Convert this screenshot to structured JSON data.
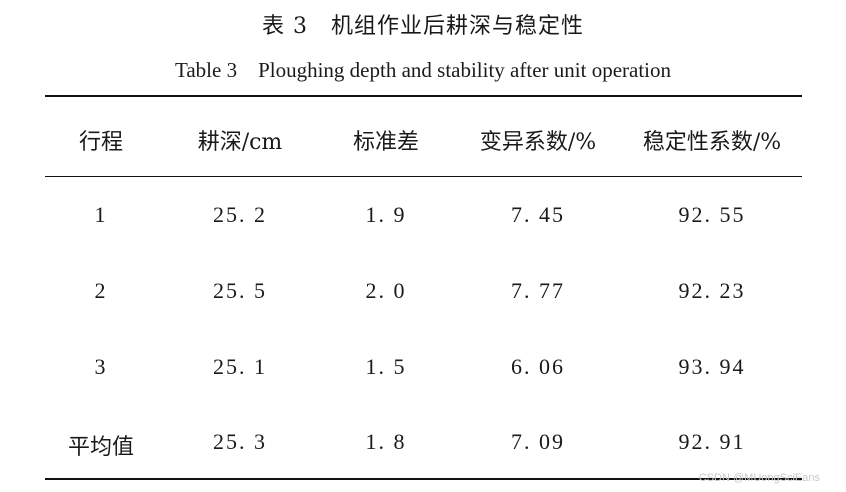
{
  "table": {
    "caption_cn": "表 3　机组作业后耕深与稳定性",
    "caption_en": "Table 3　Ploughing depth and stability after unit operation",
    "headers": [
      "行程",
      "耕深/cm",
      "标准差",
      "变异系数/%",
      "稳定性系数/%"
    ],
    "rows": [
      [
        "1",
        "25. 2",
        "1. 9",
        "7. 45",
        "92. 55"
      ],
      [
        "2",
        "25. 5",
        "2. 0",
        "7. 77",
        "92. 23"
      ],
      [
        "3",
        "25. 1",
        "1. 5",
        "6. 06",
        "93. 94"
      ],
      [
        "平均值",
        "25. 3",
        "1. 8",
        "7. 09",
        "92. 91"
      ]
    ]
  },
  "watermark": "CSDN @MUongSciEans"
}
